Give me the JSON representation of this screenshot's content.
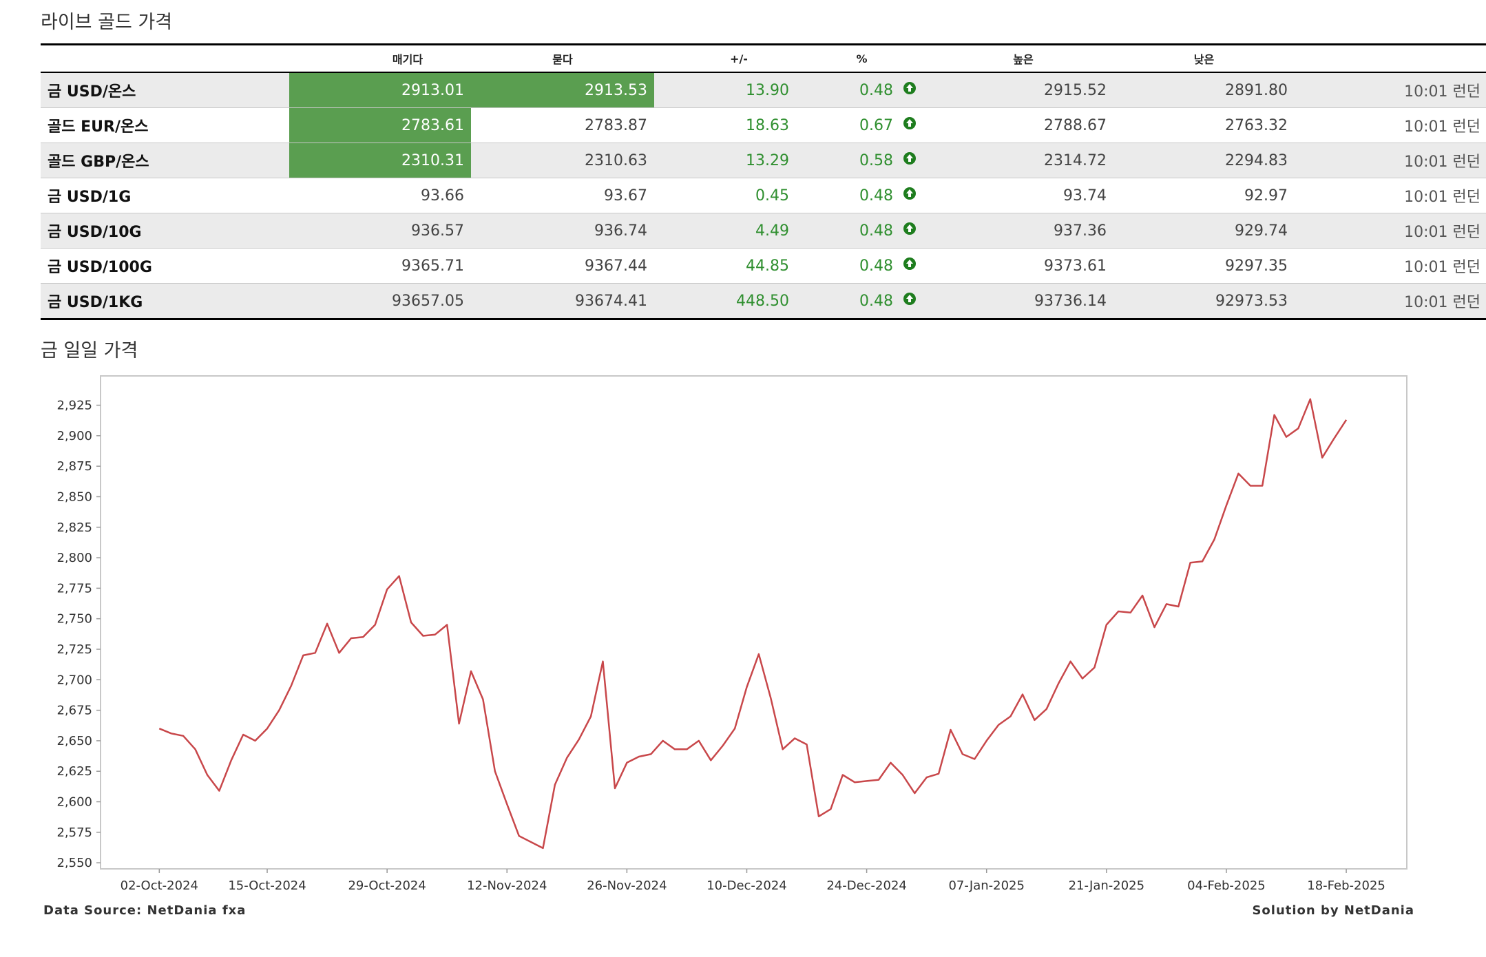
{
  "table": {
    "title": "라이브 골드 가격",
    "headers": [
      "매기다",
      "묻다",
      "+/-",
      "%",
      "높은",
      "낮은"
    ],
    "rows": [
      [
        "금 USD/온스",
        "2913.01",
        "2913.53",
        "13.90",
        "0.48",
        "2915.52",
        "2891.80",
        "10:01 런던"
      ],
      [
        "골드 EUR/온스",
        "2783.61",
        "2783.87",
        "18.63",
        "0.67",
        "2788.67",
        "2763.32",
        "10:01 런던"
      ],
      [
        "골드 GBP/온스",
        "2310.31",
        "2310.63",
        "13.29",
        "0.58",
        "2314.72",
        "2294.83",
        "10:01 런던"
      ],
      [
        "금 USD/1G",
        "93.66",
        "93.67",
        "0.45",
        "0.48",
        "93.74",
        "92.97",
        "10:01 런던"
      ],
      [
        "금 USD/10G",
        "936.57",
        "936.74",
        "4.49",
        "0.48",
        "937.36",
        "929.74",
        "10:01 런던"
      ],
      [
        "금 USD/100G",
        "9365.71",
        "9367.44",
        "44.85",
        "0.48",
        "9373.61",
        "9297.35",
        "10:01 런던"
      ],
      [
        "금 USD/1KG",
        "93657.05",
        "93674.41",
        "448.50",
        "0.48",
        "93736.14",
        "92973.53",
        "10:01 런던"
      ]
    ],
    "highlighted_cells": [
      [
        0,
        1
      ],
      [
        0,
        2
      ],
      [
        1,
        1
      ],
      [
        2,
        1
      ]
    ]
  },
  "chart_data": {
    "type": "line",
    "title": "금 일일 가격",
    "source": "Data Source: NetDania fxa",
    "credit": "Solution by NetDania",
    "color": "#c8474a",
    "x": [
      "02-Oct-2024",
      "03-Oct-2024",
      "04-Oct-2024",
      "07-Oct-2024",
      "08-Oct-2024",
      "09-Oct-2024",
      "10-Oct-2024",
      "11-Oct-2024",
      "14-Oct-2024",
      "15-Oct-2024",
      "16-Oct-2024",
      "17-Oct-2024",
      "18-Oct-2024",
      "21-Oct-2024",
      "22-Oct-2024",
      "23-Oct-2024",
      "24-Oct-2024",
      "25-Oct-2024",
      "28-Oct-2024",
      "29-Oct-2024",
      "30-Oct-2024",
      "31-Oct-2024",
      "01-Nov-2024",
      "04-Nov-2024",
      "05-Nov-2024",
      "06-Nov-2024",
      "07-Nov-2024",
      "08-Nov-2024",
      "11-Nov-2024",
      "12-Nov-2024",
      "13-Nov-2024",
      "14-Nov-2024",
      "15-Nov-2024",
      "18-Nov-2024",
      "19-Nov-2024",
      "20-Nov-2024",
      "21-Nov-2024",
      "22-Nov-2024",
      "25-Nov-2024",
      "26-Nov-2024",
      "27-Nov-2024",
      "28-Nov-2024",
      "29-Nov-2024",
      "02-Dec-2024",
      "03-Dec-2024",
      "04-Dec-2024",
      "05-Dec-2024",
      "06-Dec-2024",
      "09-Dec-2024",
      "10-Dec-2024",
      "11-Dec-2024",
      "12-Dec-2024",
      "13-Dec-2024",
      "16-Dec-2024",
      "17-Dec-2024",
      "18-Dec-2024",
      "19-Dec-2024",
      "20-Dec-2024",
      "23-Dec-2024",
      "24-Dec-2024",
      "25-Dec-2024",
      "26-Dec-2024",
      "27-Dec-2024",
      "30-Dec-2024",
      "31-Dec-2024",
      "01-Jan-2025",
      "02-Jan-2025",
      "03-Jan-2025",
      "06-Jan-2025",
      "07-Jan-2025",
      "08-Jan-2025",
      "09-Jan-2025",
      "10-Jan-2025",
      "13-Jan-2025",
      "14-Jan-2025",
      "15-Jan-2025",
      "16-Jan-2025",
      "17-Jan-2025",
      "20-Jan-2025",
      "21-Jan-2025",
      "22-Jan-2025",
      "23-Jan-2025",
      "24-Jan-2025",
      "27-Jan-2025",
      "28-Jan-2025",
      "29-Jan-2025",
      "30-Jan-2025",
      "31-Jan-2025",
      "03-Feb-2025",
      "04-Feb-2025",
      "05-Feb-2025",
      "06-Feb-2025",
      "07-Feb-2025",
      "10-Feb-2025",
      "11-Feb-2025",
      "12-Feb-2025",
      "13-Feb-2025",
      "14-Feb-2025",
      "17-Feb-2025",
      "18-Feb-2025"
    ],
    "values": [
      2660,
      2656,
      2654,
      2643,
      2622,
      2609,
      2634,
      2655,
      2650,
      2660,
      2675,
      2695,
      2720,
      2722,
      2746,
      2722,
      2734,
      2735,
      2745,
      2774,
      2785,
      2747,
      2736,
      2737,
      2745,
      2664,
      2707,
      2684,
      2625,
      2598,
      2572,
      2567,
      2562,
      2614,
      2636,
      2651,
      2670,
      2715,
      2611,
      2632,
      2637,
      2639,
      2650,
      2643,
      2643,
      2650,
      2634,
      2646,
      2660,
      2694,
      2721,
      2685,
      2643,
      2652,
      2647,
      2588,
      2594,
      2622,
      2616,
      2617,
      2618,
      2632,
      2622,
      2607,
      2620,
      2623,
      2659,
      2639,
      2635,
      2650,
      2663,
      2670,
      2688,
      2667,
      2676,
      2697,
      2715,
      2701,
      2710,
      2745,
      2756,
      2755,
      2769,
      2743,
      2762,
      2760,
      2796,
      2797,
      2815,
      2843,
      2869,
      2859,
      2859,
      2917,
      2899,
      2906,
      2930,
      2882,
      2898,
      2913
    ],
    "xticks": [
      "02-Oct-2024",
      "15-Oct-2024",
      "29-Oct-2024",
      "12-Nov-2024",
      "26-Nov-2024",
      "10-Dec-2024",
      "24-Dec-2024",
      "07-Jan-2025",
      "21-Jan-2025",
      "04-Feb-2025",
      "18-Feb-2025"
    ],
    "ylim": [
      2545,
      2949
    ],
    "yticks": [
      {
        "value": 2550,
        "label": "2,550"
      },
      {
        "value": 2575,
        "label": "2,575"
      },
      {
        "value": 2600,
        "label": "2,600"
      },
      {
        "value": 2625,
        "label": "2,625"
      },
      {
        "value": 2650,
        "label": "2,650"
      },
      {
        "value": 2675,
        "label": "2,675"
      },
      {
        "value": 2700,
        "label": "2,700"
      },
      {
        "value": 2725,
        "label": "2,725"
      },
      {
        "value": 2750,
        "label": "2,750"
      },
      {
        "value": 2775,
        "label": "2,775"
      },
      {
        "value": 2800,
        "label": "2,800"
      },
      {
        "value": 2825,
        "label": "2,825"
      },
      {
        "value": 2850,
        "label": "2,850"
      },
      {
        "value": 2875,
        "label": "2,875"
      },
      {
        "value": 2900,
        "label": "2,900"
      },
      {
        "value": 2925,
        "label": "2,925"
      }
    ],
    "grid": false
  }
}
